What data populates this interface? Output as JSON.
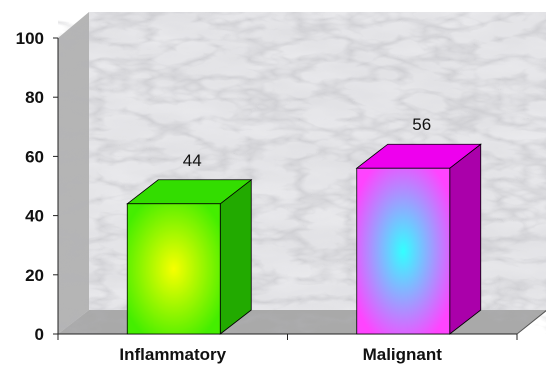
{
  "chart_data": {
    "type": "bar",
    "categories": [
      "Inflammatory",
      "Malignant"
    ],
    "values": [
      44,
      56
    ],
    "data_labels": [
      "44",
      "56"
    ],
    "title": "",
    "xlabel": "",
    "ylabel": "",
    "ylim": [
      0,
      100
    ],
    "yticks": [
      "0",
      "20",
      "40",
      "60",
      "80",
      "100"
    ],
    "grid": false,
    "legend": "none",
    "style": "3d",
    "background": "marble",
    "colors": {
      "Inflammatory": {
        "front_center": "#f7ff00",
        "front_edge": "#44ee00",
        "top": "#33dd00",
        "side": "#22aa00"
      },
      "Malignant": {
        "front_center": "#33ffff",
        "front_edge": "#ff44ff",
        "top": "#ee00ee",
        "side": "#aa00aa"
      }
    }
  }
}
